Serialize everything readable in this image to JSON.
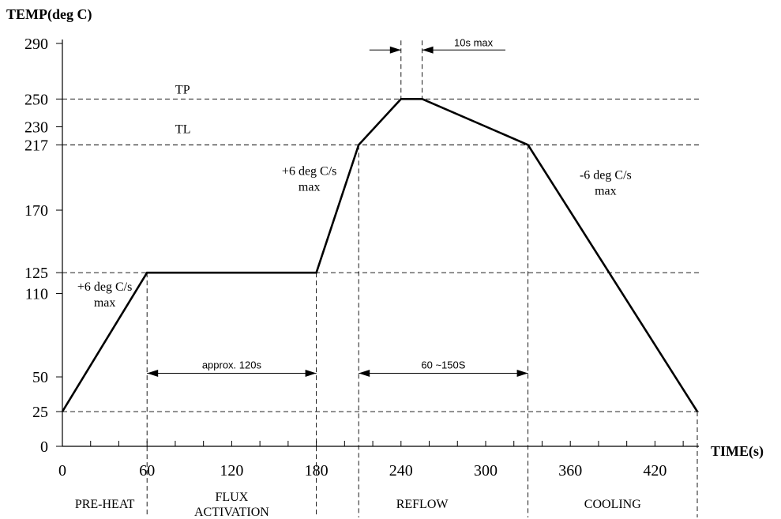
{
  "chart_data": {
    "type": "line",
    "ylabel": "TEMP(deg C)",
    "xlabel": "TIME(s)",
    "xlim": [
      0,
      450
    ],
    "ylim": [
      0,
      290
    ],
    "y_ticks": [
      0,
      25,
      50,
      110,
      125,
      170,
      217,
      230,
      250,
      290
    ],
    "x_ticks": [
      0,
      60,
      120,
      180,
      240,
      300,
      360,
      420
    ],
    "x_minor_step": 20,
    "series": [
      {
        "points": [
          [
            0,
            25
          ],
          [
            60,
            125
          ],
          [
            180,
            125
          ],
          [
            210,
            217
          ],
          [
            240,
            250
          ],
          [
            255,
            250
          ],
          [
            330,
            217
          ],
          [
            450,
            25
          ]
        ]
      }
    ],
    "dashed_hlines": [
      250,
      217,
      125,
      25
    ],
    "dashed_vlines": [
      60,
      180,
      210,
      330,
      450
    ],
    "annotations": {
      "tp": {
        "text": "TP",
        "x": 80,
        "y": 250
      },
      "tl": {
        "text": "TL",
        "x": 80,
        "y": 217
      },
      "slope_preheat": {
        "line1": "+6 deg C/s",
        "line2": "max",
        "x": 30,
        "y": 125
      },
      "slope_ramp": {
        "line1": "+6 deg C/s",
        "line2": "max",
        "x": 175,
        "y": 217
      },
      "slope_cool": {
        "line1": "-6 deg C/s",
        "line2": "max",
        "x": 385,
        "y": 217
      },
      "peak_time": {
        "text": "10s  max",
        "x1": 240,
        "x2": 255,
        "y": 287
      },
      "flux_duration": {
        "text": "approx. 120s",
        "x1": 60,
        "x2": 180,
        "y": 60
      },
      "reflow_duration": {
        "text": "60 ~150S",
        "x1": 210,
        "x2": 330,
        "y": 60
      }
    },
    "phases": [
      {
        "name": "PRE-HEAT",
        "x": 30
      },
      {
        "name": "FLUX",
        "name2": "ACTIVATION",
        "x": 120
      },
      {
        "name": "REFLOW",
        "x": 255
      },
      {
        "name": "COOLING",
        "x": 390
      }
    ],
    "grid": false,
    "legend": "none"
  }
}
